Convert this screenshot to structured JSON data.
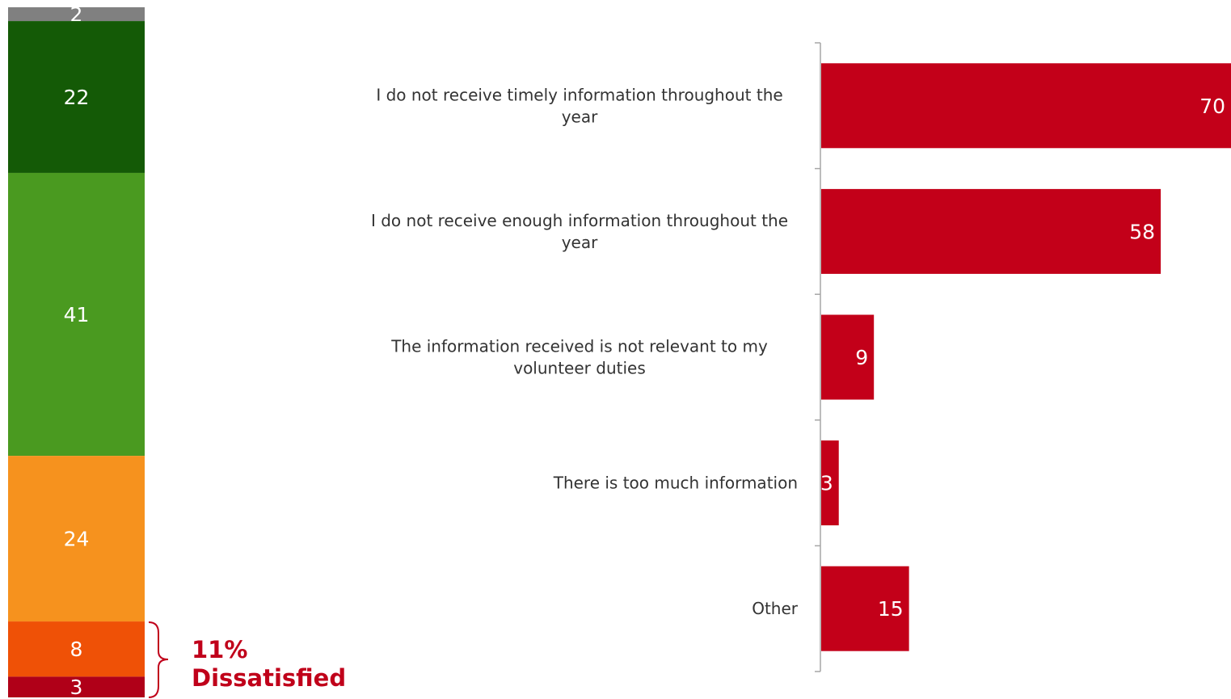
{
  "chart_data": [
    {
      "type": "bar",
      "orientation": "vertical-stacked",
      "values": [
        2,
        22,
        41,
        24,
        8,
        3
      ],
      "colors": [
        "#808080",
        "#145a06",
        "#4a9a20",
        "#f6921e",
        "#ef5106",
        "#b00018"
      ],
      "label_color": "#ffffff",
      "callout": {
        "value": "11%",
        "label": "Dissatisfied",
        "color": "#c0001a"
      }
    },
    {
      "type": "bar",
      "orientation": "horizontal",
      "categories": [
        [
          "I do not receive timely information throughout the",
          "year"
        ],
        [
          "I do not receive enough information throughout the",
          "year"
        ],
        [
          "The information received is not relevant to my",
          "volunteer duties"
        ],
        [
          "There is too much information"
        ],
        [
          "Other"
        ]
      ],
      "values": [
        70,
        58,
        9,
        3,
        15
      ],
      "color": "#c30019",
      "label_color": "#ffffff",
      "axis_color": "#a6a6a6"
    }
  ]
}
